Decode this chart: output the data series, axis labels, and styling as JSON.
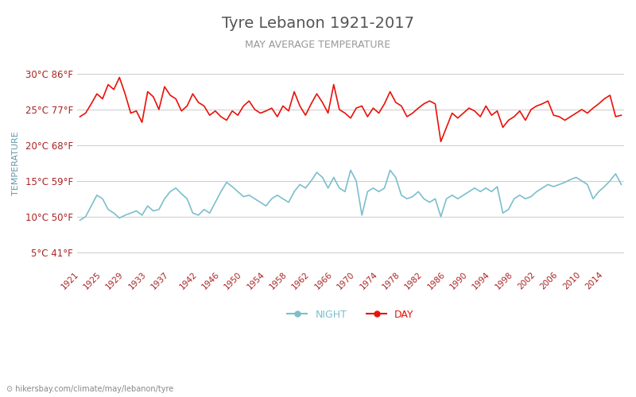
{
  "title": "Tyre Lebanon 1921-2017",
  "subtitle": "MAY AVERAGE TEMPERATURE",
  "ylabel": "TEMPERATURE",
  "xlabel_url": "hikersbay.com/climate/may/lebanon/tyre",
  "year_start": 1921,
  "year_end": 2017,
  "yticks_c": [
    5,
    10,
    15,
    20,
    25,
    30
  ],
  "yticks_f": [
    41,
    50,
    59,
    68,
    77,
    86
  ],
  "ymin": 3,
  "ymax": 32,
  "day_color": "#e8120a",
  "night_color": "#7bbfcc",
  "grid_color": "#cccccc",
  "title_color": "#555555",
  "subtitle_color": "#999999",
  "ylabel_color": "#6699aa",
  "tick_color": "#aa2222",
  "bg_color": "#ffffff",
  "url_color": "#888888",
  "legend_night_label": "NIGHT",
  "legend_day_label": "DAY",
  "xtick_years": [
    1921,
    1925,
    1929,
    1933,
    1937,
    1942,
    1946,
    1950,
    1954,
    1958,
    1962,
    1966,
    1970,
    1974,
    1978,
    1982,
    1986,
    1990,
    1994,
    1998,
    2002,
    2006,
    2010,
    2014
  ],
  "day_temps": [
    24.0,
    24.5,
    25.8,
    27.2,
    26.5,
    28.5,
    27.8,
    29.5,
    27.2,
    24.5,
    24.8,
    23.2,
    27.5,
    26.8,
    25.0,
    28.2,
    27.0,
    26.5,
    24.8,
    25.5,
    27.2,
    26.0,
    25.5,
    24.2,
    24.8,
    24.0,
    23.5,
    24.8,
    24.2,
    25.5,
    26.2,
    25.0,
    24.5,
    24.8,
    25.2,
    24.0,
    25.5,
    24.8,
    27.5,
    25.5,
    24.2,
    25.8,
    27.2,
    26.0,
    24.5,
    28.5,
    25.0,
    24.5,
    23.8,
    25.2,
    25.5,
    24.0,
    25.2,
    24.5,
    25.8,
    27.5,
    26.0,
    25.5,
    24.0,
    24.5,
    25.2,
    25.8,
    26.2,
    25.8,
    20.5,
    22.5,
    24.5,
    23.8,
    24.5,
    25.2,
    24.8,
    24.0,
    25.5,
    24.2,
    24.8,
    22.5,
    23.5,
    24.0,
    24.8,
    23.5,
    25.0,
    25.5,
    25.8,
    26.2,
    24.2,
    24.0,
    23.5,
    24.0,
    24.5,
    25.0,
    24.5,
    25.2,
    25.8,
    26.5,
    27.0,
    24.0,
    24.2
  ],
  "night_temps": [
    9.5,
    10.0,
    11.5,
    13.0,
    12.5,
    11.0,
    10.5,
    9.8,
    10.2,
    10.5,
    10.8,
    10.2,
    11.5,
    10.8,
    11.0,
    12.5,
    13.5,
    14.0,
    13.2,
    12.5,
    10.5,
    10.2,
    11.0,
    10.5,
    12.0,
    13.5,
    14.8,
    14.2,
    13.5,
    12.8,
    13.0,
    12.5,
    12.0,
    11.5,
    12.5,
    13.0,
    12.5,
    12.0,
    13.5,
    14.5,
    14.0,
    15.0,
    16.2,
    15.5,
    14.0,
    15.5,
    14.0,
    13.5,
    16.5,
    15.0,
    10.2,
    13.5,
    14.0,
    13.5,
    14.0,
    16.5,
    15.5,
    13.0,
    12.5,
    12.8,
    13.5,
    12.5,
    12.0,
    12.5,
    10.0,
    12.5,
    13.0,
    12.5,
    13.0,
    13.5,
    14.0,
    13.5,
    14.0,
    13.5,
    14.2,
    10.5,
    11.0,
    12.5,
    13.0,
    12.5,
    12.8,
    13.5,
    14.0,
    14.5,
    14.2,
    14.5,
    14.8,
    15.2,
    15.5,
    15.0,
    14.5,
    12.5,
    13.5,
    14.2,
    15.0,
    16.0,
    14.5
  ]
}
